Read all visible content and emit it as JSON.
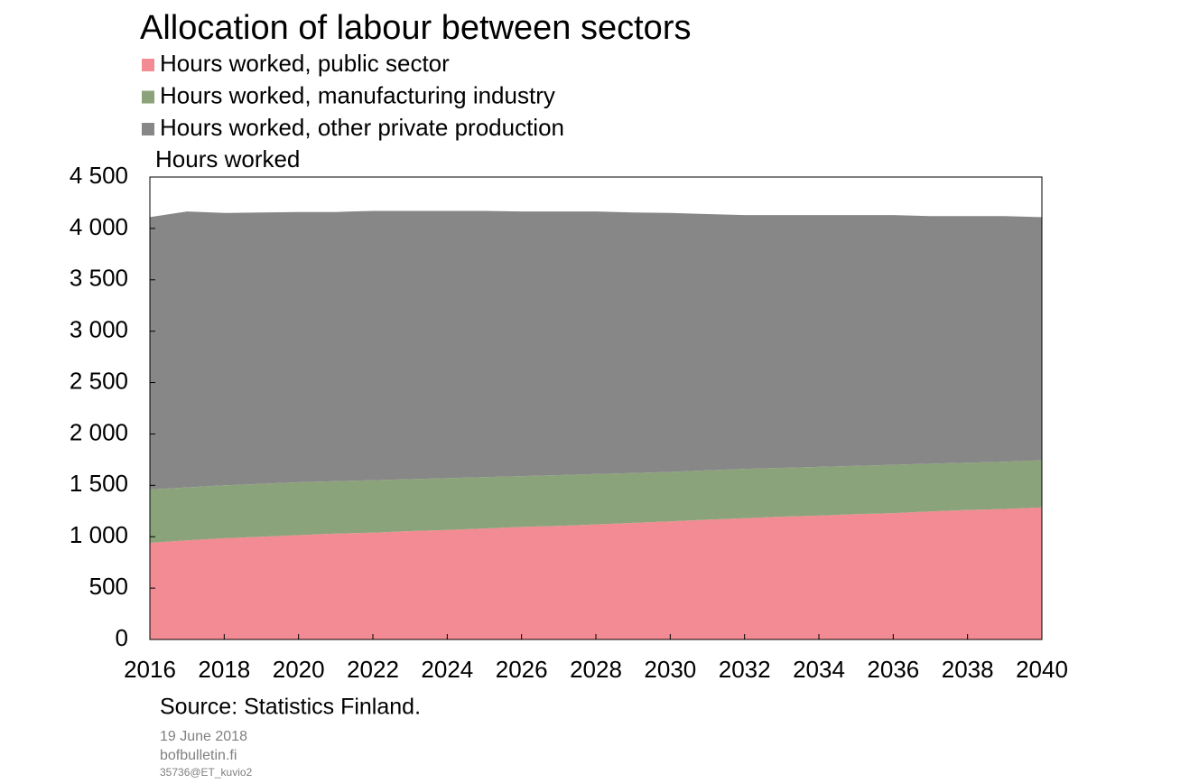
{
  "chart_data": {
    "type": "stacked_area",
    "title": "Allocation of labour between sectors",
    "y_label": "Hours worked",
    "source": "Source: Statistics Finland.",
    "date": "19 June 2018",
    "site": "bofbulletin.fi",
    "code": "35736@ET_kuvio2",
    "x": [
      2016,
      2017,
      2018,
      2019,
      2020,
      2021,
      2022,
      2023,
      2024,
      2025,
      2026,
      2027,
      2028,
      2029,
      2030,
      2031,
      2032,
      2033,
      2034,
      2035,
      2036,
      2037,
      2038,
      2039,
      2040
    ],
    "xlim": [
      2016,
      2040
    ],
    "xticks": [
      2016,
      2018,
      2020,
      2022,
      2024,
      2026,
      2028,
      2030,
      2032,
      2034,
      2036,
      2038,
      2040
    ],
    "ylim": [
      0,
      4500
    ],
    "yticks": [
      0,
      500,
      {
        "value": 1000,
        "label": "1 000"
      },
      {
        "value": 1500,
        "label": "1 500"
      },
      {
        "value": 2000,
        "label": "2 000"
      },
      {
        "value": 2500,
        "label": "2 500"
      },
      {
        "value": 3000,
        "label": "3 000"
      },
      {
        "value": 3500,
        "label": "3 500"
      },
      {
        "value": 4000,
        "label": "4 000"
      },
      {
        "value": 4500,
        "label": "4 500"
      }
    ],
    "series": [
      {
        "name": "Hours worked, public sector",
        "color": "#f28b93",
        "values": [
          940,
          965,
          985,
          1000,
          1015,
          1030,
          1040,
          1055,
          1065,
          1080,
          1095,
          1105,
          1120,
          1135,
          1150,
          1165,
          1180,
          1195,
          1205,
          1220,
          1230,
          1245,
          1260,
          1270,
          1285
        ]
      },
      {
        "name": "Hours worked, manufacturing industry",
        "color": "#8ba37a",
        "values": [
          520,
          515,
          515,
          515,
          515,
          510,
          510,
          505,
          505,
          500,
          495,
          495,
          490,
          485,
          480,
          480,
          480,
          475,
          475,
          470,
          470,
          465,
          460,
          460,
          460
        ]
      },
      {
        "name": "Hours worked, other private production",
        "color": "#878787",
        "values": [
          2650,
          2685,
          2650,
          2640,
          2630,
          2620,
          2620,
          2610,
          2600,
          2590,
          2575,
          2565,
          2555,
          2535,
          2520,
          2495,
          2470,
          2460,
          2450,
          2440,
          2430,
          2410,
          2400,
          2390,
          2365
        ]
      }
    ]
  }
}
